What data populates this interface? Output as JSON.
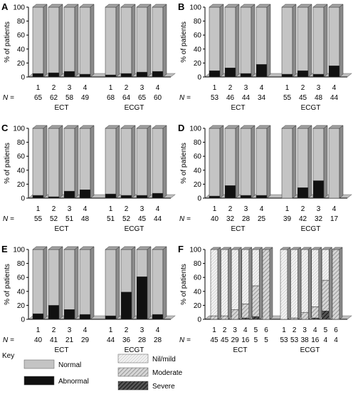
{
  "y_tick_labels": [
    "0",
    "20",
    "40",
    "60",
    "80",
    "100"
  ],
  "n_label": "N =",
  "key": {
    "title": "Key",
    "items": [
      {
        "label": "Normal",
        "pattern": "normal"
      },
      {
        "label": "Abnormal",
        "pattern": "abnormal"
      },
      {
        "label": "Nil/mild",
        "pattern": "nil"
      },
      {
        "label": "Moderate",
        "pattern": "moderate"
      },
      {
        "label": "Severe",
        "pattern": "severe"
      }
    ]
  },
  "colors": {
    "normal": "#c4c4c4",
    "abnormal": "#111111",
    "side": "#8a8a8a",
    "top": "#a4a4a4",
    "floor": "#bdbdbd"
  },
  "chart_data": [
    {
      "panel": "A",
      "type": "bar",
      "stacked": true,
      "ylabel": "% of patients",
      "ylim": [
        0,
        100
      ],
      "groups": [
        {
          "name": "ECT",
          "categories": [
            "1",
            "2",
            "3",
            "4"
          ],
          "N": [
            "65",
            "62",
            "58",
            "49"
          ],
          "series": [
            {
              "name": "Abnormal",
              "values": [
                5,
                6,
                8,
                4
              ]
            },
            {
              "name": "Normal",
              "values": [
                95,
                94,
                92,
                96
              ]
            }
          ]
        },
        {
          "name": "ECGT",
          "categories": [
            "1",
            "2",
            "3",
            "4"
          ],
          "N": [
            "68",
            "64",
            "65",
            "60"
          ],
          "series": [
            {
              "name": "Abnormal",
              "values": [
                3,
                5,
                7,
                8
              ]
            },
            {
              "name": "Normal",
              "values": [
                97,
                95,
                93,
                92
              ]
            }
          ]
        }
      ]
    },
    {
      "panel": "B",
      "type": "bar",
      "stacked": true,
      "ylabel": "% of patients",
      "ylim": [
        0,
        100
      ],
      "groups": [
        {
          "name": "ECT",
          "categories": [
            "1",
            "2",
            "3",
            "4"
          ],
          "N": [
            "53",
            "46",
            "44",
            "34"
          ],
          "series": [
            {
              "name": "Abnormal",
              "values": [
                9,
                13,
                5,
                18
              ]
            },
            {
              "name": "Normal",
              "values": [
                91,
                87,
                95,
                82
              ]
            }
          ]
        },
        {
          "name": "ECGT",
          "categories": [
            "1",
            "2",
            "3",
            "4"
          ],
          "N": [
            "55",
            "45",
            "48",
            "44"
          ],
          "series": [
            {
              "name": "Abnormal",
              "values": [
                4,
                9,
                4,
                16
              ]
            },
            {
              "name": "Normal",
              "values": [
                96,
                91,
                96,
                84
              ]
            }
          ]
        }
      ]
    },
    {
      "panel": "C",
      "type": "bar",
      "stacked": true,
      "ylabel": "% of patients",
      "ylim": [
        0,
        100
      ],
      "groups": [
        {
          "name": "ECT",
          "categories": [
            "1",
            "2",
            "3",
            "4"
          ],
          "N": [
            "55",
            "52",
            "51",
            "48"
          ],
          "series": [
            {
              "name": "Abnormal",
              "values": [
                4,
                2,
                10,
                12
              ]
            },
            {
              "name": "Normal",
              "values": [
                96,
                98,
                90,
                88
              ]
            }
          ]
        },
        {
          "name": "ECGT",
          "categories": [
            "1",
            "2",
            "3",
            "4"
          ],
          "N": [
            "51",
            "52",
            "45",
            "44"
          ],
          "series": [
            {
              "name": "Abnormal",
              "values": [
                6,
                4,
                4,
                7
              ]
            },
            {
              "name": "Normal",
              "values": [
                94,
                96,
                96,
                93
              ]
            }
          ]
        }
      ]
    },
    {
      "panel": "D",
      "type": "bar",
      "stacked": true,
      "ylabel": "% of patients",
      "ylim": [
        0,
        100
      ],
      "groups": [
        {
          "name": "ECT",
          "categories": [
            "1",
            "2",
            "3",
            "4"
          ],
          "N": [
            "40",
            "32",
            "28",
            "25"
          ],
          "series": [
            {
              "name": "Abnormal",
              "values": [
                3,
                18,
                4,
                4
              ]
            },
            {
              "name": "Normal",
              "values": [
                97,
                82,
                96,
                96
              ]
            }
          ]
        },
        {
          "name": "ECGT",
          "categories": [
            "1",
            "2",
            "3",
            "4"
          ],
          "N": [
            "39",
            "42",
            "32",
            "17"
          ],
          "series": [
            {
              "name": "Abnormal",
              "values": [
                0,
                15,
                25,
                0
              ]
            },
            {
              "name": "Normal",
              "values": [
                100,
                85,
                75,
                100
              ]
            }
          ]
        }
      ]
    },
    {
      "panel": "E",
      "type": "bar",
      "stacked": true,
      "ylabel": "% of patients",
      "ylim": [
        0,
        100
      ],
      "groups": [
        {
          "name": "ECT",
          "categories": [
            "1",
            "2",
            "3",
            "4"
          ],
          "N": [
            "40",
            "41",
            "21",
            "29"
          ],
          "series": [
            {
              "name": "Abnormal",
              "values": [
                8,
                20,
                14,
                7
              ]
            },
            {
              "name": "Normal",
              "values": [
                92,
                80,
                86,
                93
              ]
            }
          ]
        },
        {
          "name": "ECGT",
          "categories": [
            "1",
            "2",
            "3",
            "4"
          ],
          "N": [
            "44",
            "36",
            "28",
            "28"
          ],
          "series": [
            {
              "name": "Abnormal",
              "values": [
                5,
                39,
                61,
                7
              ]
            },
            {
              "name": "Normal",
              "values": [
                95,
                61,
                39,
                93
              ]
            }
          ]
        }
      ]
    },
    {
      "panel": "F",
      "type": "bar",
      "stacked": true,
      "ylabel": "% of patients",
      "ylim": [
        0,
        100
      ],
      "groups": [
        {
          "name": "ECT",
          "categories": [
            "1",
            "2",
            "3",
            "4",
            "5",
            "6"
          ],
          "N": [
            "45",
            "45",
            "29",
            "16",
            "5",
            "5"
          ],
          "N_row": "45 45 29 16 5 5",
          "N_row_printed": "1  2  3  4  5  6",
          "series": [
            {
              "name": "Severe",
              "values": [
                0,
                0,
                0,
                2,
                4,
                0
              ]
            },
            {
              "name": "Moderate",
              "values": [
                5,
                5,
                14,
                20,
                44,
                100
              ]
            },
            {
              "name": "Nil/mild",
              "values": [
                95,
                95,
                86,
                78,
                52,
                0
              ]
            }
          ]
        },
        {
          "name": "ECGT",
          "categories": [
            "1",
            "2",
            "3",
            "4",
            "5",
            "6"
          ],
          "N": [
            "53",
            "53",
            "38",
            "16",
            "4",
            "4"
          ],
          "series": [
            {
              "name": "Severe",
              "values": [
                0,
                0,
                0,
                2,
                12,
                0
              ]
            },
            {
              "name": "Moderate",
              "values": [
                0,
                2,
                10,
                16,
                44,
                100
              ]
            },
            {
              "name": "Nil/mild",
              "values": [
                100,
                98,
                90,
                82,
                44,
                0
              ]
            }
          ]
        }
      ]
    }
  ]
}
